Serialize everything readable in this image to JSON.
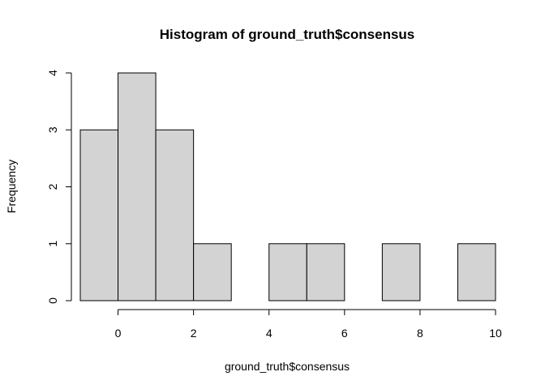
{
  "chart_data": {
    "type": "bar",
    "title": "Histogram of ground_truth$consensus",
    "xlabel": "ground_truth$consensus",
    "ylabel": "Frequency",
    "bin_edges": [
      -1,
      0,
      1,
      2,
      3,
      4,
      5,
      6,
      7,
      8,
      9,
      10
    ],
    "values": [
      3,
      4,
      3,
      1,
      0,
      1,
      1,
      0,
      1,
      0,
      1
    ],
    "xlim": [
      -1,
      10
    ],
    "ylim": [
      0,
      4
    ],
    "x_ticks": [
      0,
      2,
      4,
      6,
      8,
      10
    ],
    "y_ticks": [
      0,
      1,
      2,
      3,
      4
    ],
    "bar_fill": "#d3d3d3",
    "bar_stroke": "#000000",
    "grid": false,
    "legend": "none"
  }
}
